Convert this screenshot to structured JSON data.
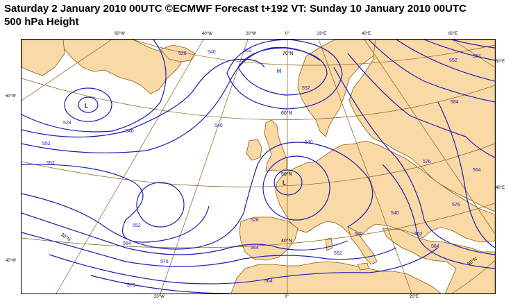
{
  "header": {
    "line1": "Saturday 2 January 2010 00UTC ©ECMWF Forecast t+192 VT: Sunday 10 January 2010 00UTC",
    "line2": "500 hPa Height"
  },
  "colors": {
    "land": "#f9d9a6",
    "coast": "#8a5a14",
    "graticule": "#8a5a14",
    "contour": "#1c1cb4"
  },
  "edge_labels": {
    "top": [
      "60°W",
      "40°W",
      "20°W",
      "0°",
      "20°E",
      "40°E",
      "60°E"
    ],
    "bottom": [
      "20°W",
      "0°",
      "20°E"
    ],
    "left": [
      "60°W",
      "40°W"
    ],
    "right": [
      "60°E",
      "40°E"
    ]
  },
  "parallel_labels": [
    "70°N",
    "60°N",
    "50°N",
    "40°N",
    "30°N",
    "30°N"
  ],
  "pressure_centers": [
    {
      "label": "L",
      "color": "#000000"
    },
    {
      "label": "H",
      "color": "#1c1cb4"
    },
    {
      "label": "L",
      "color": "#000000"
    }
  ],
  "contour_labels": [
    "528",
    "540",
    "552",
    "552",
    "528",
    "540",
    "552",
    "564",
    "576",
    "540",
    "552",
    "564",
    "576",
    "540",
    "528",
    "540",
    "552",
    "564",
    "552",
    "564",
    "576",
    "584",
    "552",
    "540",
    "564",
    "552",
    "584",
    "576"
  ]
}
